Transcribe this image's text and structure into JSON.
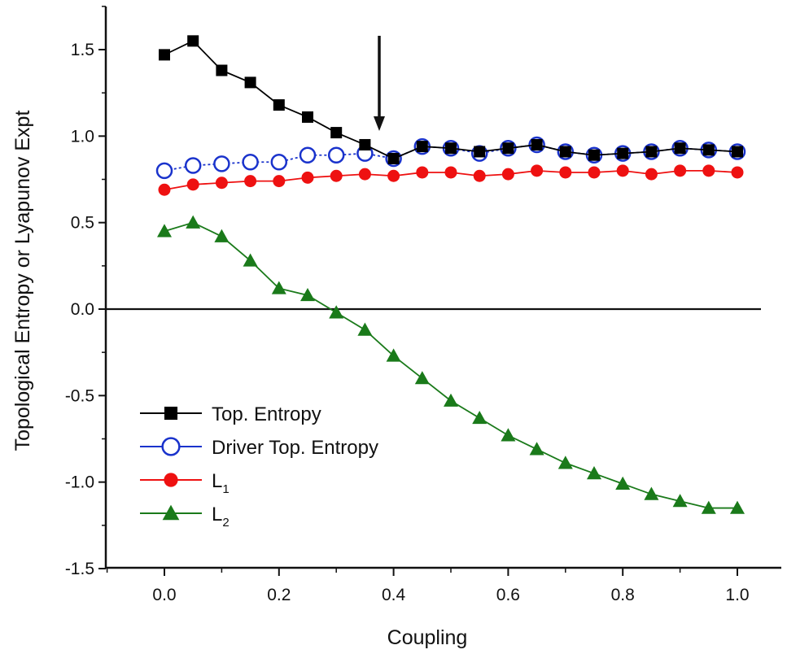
{
  "chart_data": {
    "type": "line",
    "xlabel": "Coupling",
    "ylabel": "Topological Entropy or Lyapunov Expt",
    "xlim": [
      -0.1,
      1.05
    ],
    "ylim": [
      -1.5,
      1.7
    ],
    "x_ticks": [
      0.0,
      0.2,
      0.4,
      0.6,
      0.8,
      1.0
    ],
    "x_tick_labels": [
      "0.0",
      "0.2",
      "0.4",
      "0.6",
      "0.8",
      "1.0"
    ],
    "y_ticks": [
      -1.5,
      -1.0,
      -0.5,
      0.0,
      0.5,
      1.0,
      1.5
    ],
    "y_tick_labels": [
      "-1.5",
      "-1.0",
      "-0.5",
      "0.0",
      "0.5",
      "1.0",
      "1.5"
    ],
    "grid": false,
    "zero_line": true,
    "legend_position": "bottom-left",
    "arrow_annotation": {
      "x": 0.375,
      "y_start": 1.58,
      "y_end": 1.03
    },
    "x": [
      0.0,
      0.05,
      0.1,
      0.15,
      0.2,
      0.25,
      0.3,
      0.35,
      0.4,
      0.45,
      0.5,
      0.55,
      0.6,
      0.65,
      0.7,
      0.75,
      0.8,
      0.85,
      0.9,
      0.95,
      1.0
    ],
    "series": [
      {
        "name": "Top. Entropy",
        "marker": "filled-square",
        "color": "#000000",
        "values": [
          1.47,
          1.55,
          1.38,
          1.31,
          1.18,
          1.11,
          1.02,
          0.95,
          0.87,
          0.94,
          0.93,
          0.91,
          0.93,
          0.95,
          0.91,
          0.89,
          0.9,
          0.91,
          0.93,
          0.92,
          0.91
        ]
      },
      {
        "name": "Driver Top. Entropy",
        "marker": "open-circle",
        "color": "#1a33cc",
        "values": [
          0.8,
          0.83,
          0.84,
          0.85,
          0.85,
          0.89,
          0.89,
          0.9,
          0.87,
          0.94,
          0.93,
          0.9,
          0.93,
          0.95,
          0.91,
          0.89,
          0.9,
          0.91,
          0.93,
          0.92,
          0.91
        ]
      },
      {
        "name": "L",
        "name_subscript": "1",
        "marker": "filled-circle",
        "color": "#ee1111",
        "values": [
          0.69,
          0.72,
          0.73,
          0.74,
          0.74,
          0.76,
          0.77,
          0.78,
          0.77,
          0.79,
          0.79,
          0.77,
          0.78,
          0.8,
          0.79,
          0.79,
          0.8,
          0.78,
          0.8,
          0.8,
          0.79
        ]
      },
      {
        "name": "L",
        "name_subscript": "2",
        "marker": "filled-triangle",
        "color": "#1a7a1a",
        "values": [
          0.45,
          0.5,
          0.42,
          0.28,
          0.12,
          0.08,
          -0.02,
          -0.12,
          -0.27,
          -0.4,
          -0.53,
          -0.63,
          -0.73,
          -0.81,
          -0.89,
          -0.95,
          -1.01,
          -1.07,
          -1.11,
          -1.15,
          -1.15
        ]
      }
    ]
  }
}
